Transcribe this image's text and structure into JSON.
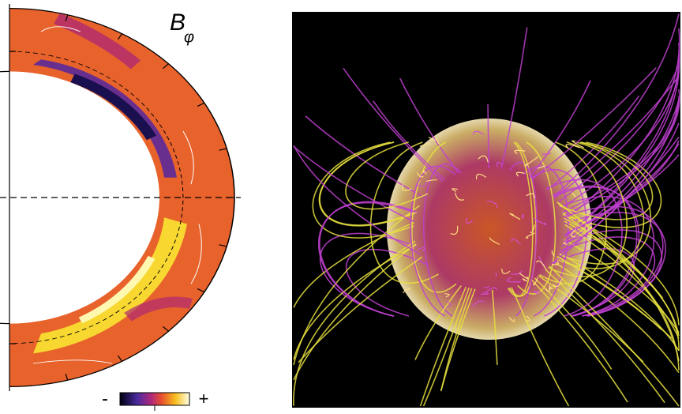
{
  "panels": {
    "left": {
      "label": "B",
      "subscript": "φ",
      "colorbar": {
        "min_label": "-",
        "max_label": "+"
      }
    }
  }
}
